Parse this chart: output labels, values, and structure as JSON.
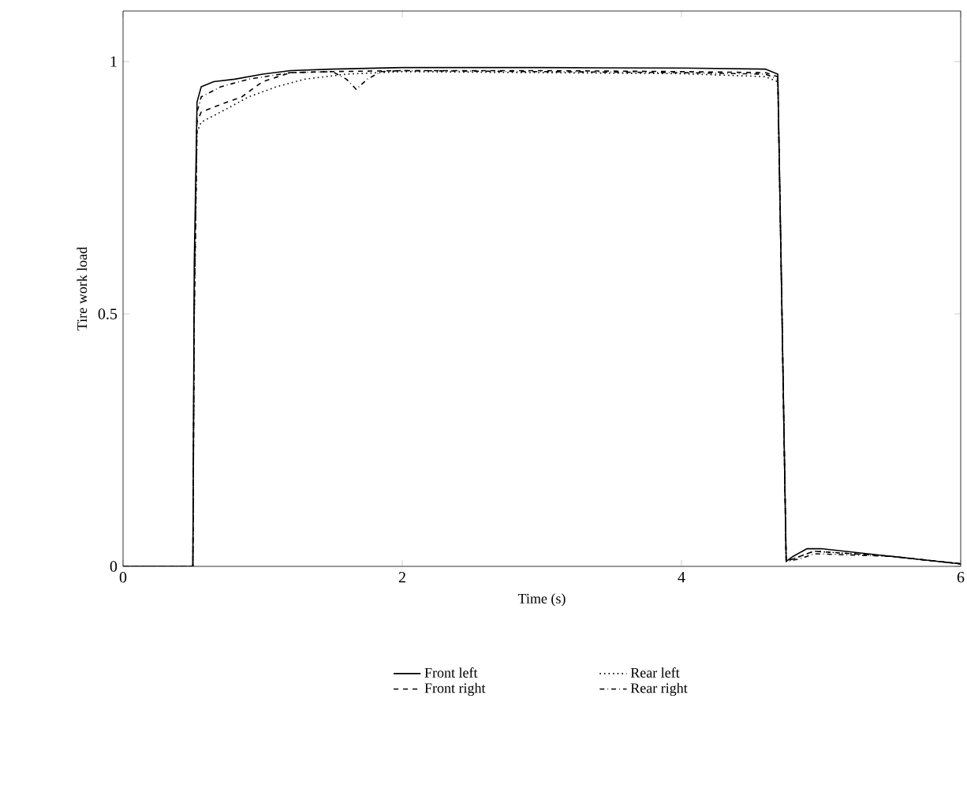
{
  "chart_data": {
    "type": "line",
    "xlabel": "Time (s)",
    "ylabel": "Tire work load",
    "xlim": [
      0,
      6
    ],
    "ylim": [
      0,
      1.1
    ],
    "xticks": [
      0,
      2,
      4,
      6
    ],
    "yticks": [
      0,
      0.5,
      1
    ],
    "legend": "bottom",
    "series": [
      {
        "name": "Front left",
        "color": "#000000",
        "line_style": "solid",
        "x": [
          0,
          0.5,
          0.51,
          0.53,
          0.56,
          0.65,
          0.8,
          1.0,
          1.2,
          1.5,
          2.0,
          3.0,
          4.0,
          4.6,
          4.69,
          4.72,
          4.75,
          4.8,
          4.9,
          5.0,
          5.5,
          6.0
        ],
        "values": [
          0,
          0,
          0.6,
          0.92,
          0.95,
          0.96,
          0.965,
          0.975,
          0.982,
          0.985,
          0.988,
          0.988,
          0.987,
          0.985,
          0.975,
          0.5,
          0.01,
          0.02,
          0.035,
          0.035,
          0.02,
          0.005
        ]
      },
      {
        "name": "Front right",
        "color": "#000000",
        "line_style": "dashed",
        "x": [
          0,
          0.5,
          0.51,
          0.53,
          0.56,
          0.7,
          0.85,
          1.0,
          1.2,
          1.5,
          2.0,
          3.0,
          4.0,
          4.6,
          4.69,
          4.72,
          4.75,
          4.85,
          4.95,
          5.5,
          6.0
        ],
        "values": [
          0,
          0,
          0.5,
          0.88,
          0.9,
          0.915,
          0.93,
          0.96,
          0.978,
          0.98,
          0.982,
          0.982,
          0.98,
          0.978,
          0.97,
          0.5,
          0.01,
          0.02,
          0.03,
          0.02,
          0.005
        ]
      },
      {
        "name": "Rear left",
        "color": "#000000",
        "line_style": "dotted",
        "x": [
          0,
          0.5,
          0.51,
          0.53,
          0.56,
          0.7,
          0.9,
          1.1,
          1.3,
          1.6,
          2.0,
          3.0,
          4.0,
          4.6,
          4.69,
          4.72,
          4.75,
          4.85,
          4.95,
          5.5,
          6.0
        ],
        "values": [
          0,
          0,
          0.5,
          0.86,
          0.88,
          0.9,
          0.93,
          0.95,
          0.965,
          0.975,
          0.98,
          0.978,
          0.976,
          0.97,
          0.96,
          0.5,
          0.01,
          0.02,
          0.03,
          0.02,
          0.005
        ]
      },
      {
        "name": "Rear right",
        "color": "#000000",
        "line_style": "dashdot",
        "x": [
          0,
          0.5,
          0.51,
          0.53,
          0.56,
          0.7,
          0.9,
          1.2,
          1.5,
          1.6,
          1.67,
          1.75,
          1.85,
          2.0,
          3.0,
          4.0,
          4.6,
          4.69,
          4.72,
          4.75,
          4.85,
          4.95,
          5.5,
          6.0
        ],
        "values": [
          0,
          0,
          0.5,
          0.9,
          0.93,
          0.95,
          0.965,
          0.978,
          0.98,
          0.965,
          0.945,
          0.965,
          0.98,
          0.982,
          0.98,
          0.978,
          0.975,
          0.965,
          0.5,
          0.01,
          0.015,
          0.025,
          0.02,
          0.005
        ]
      }
    ]
  }
}
